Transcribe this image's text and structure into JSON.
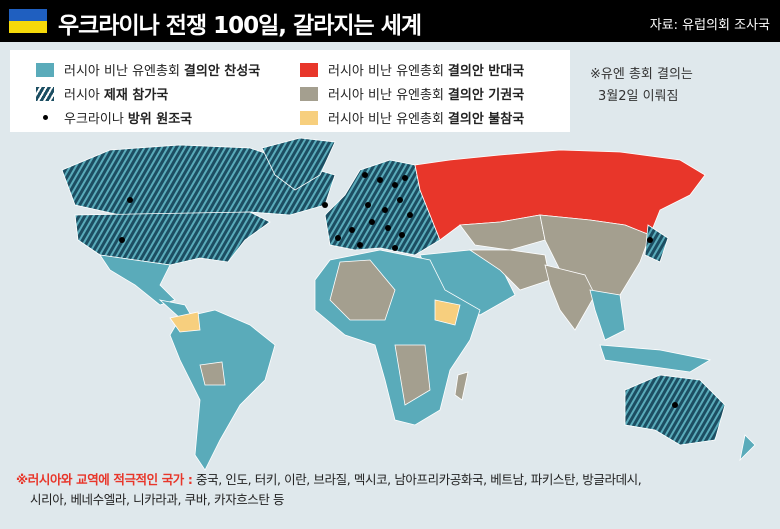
{
  "header": {
    "title": "우크라이나 전쟁 100일, 갈라지는 세계",
    "source": "자료: 유럽의회 조사국"
  },
  "legend": [
    {
      "text": "러시아 비난 유엔총회",
      "bold": "결의안 찬성국",
      "color": "#5aabba",
      "symbol": "swatch"
    },
    {
      "text": "러시아",
      "bold": "제재 참가국",
      "color": "#1c4e62",
      "symbol": "hatch"
    },
    {
      "text": "우크라이나",
      "bold": "방위 원조국",
      "color": "#000000",
      "symbol": "dot"
    },
    {
      "text": "러시아 비난 유엔총회",
      "bold": "결의안 반대국",
      "color": "#e8362a",
      "symbol": "swatch"
    },
    {
      "text": "러시아 비난 유엔총회",
      "bold": "결의안 기권국",
      "color": "#a49f8f",
      "symbol": "swatch"
    },
    {
      "text": "러시아 비난 유엔총회",
      "bold": "결의안 불참국",
      "color": "#f7cf7e",
      "symbol": "swatch"
    }
  ],
  "note": {
    "line1": "※유엔 총회 결의는",
    "line2": "3월2일 이뤄짐"
  },
  "footnote": {
    "label": "※러시아와 교역에 적극적인 국가 :",
    "line1": "중국, 인도, 터키, 이란, 브라질, 멕시코, 남아프리카공화국, 베트남, 파키스탄, 방글라데시,",
    "line2": "시리아, 베네수엘라, 니카라과, 쿠바, 카자흐스탄 등"
  },
  "colors": {
    "favor": "#5aabba",
    "against": "#e8362a",
    "abstain": "#a49f8f",
    "absent": "#f7cf7e",
    "sanction": "#1c4e62",
    "ocean": "#dfe8ec"
  }
}
